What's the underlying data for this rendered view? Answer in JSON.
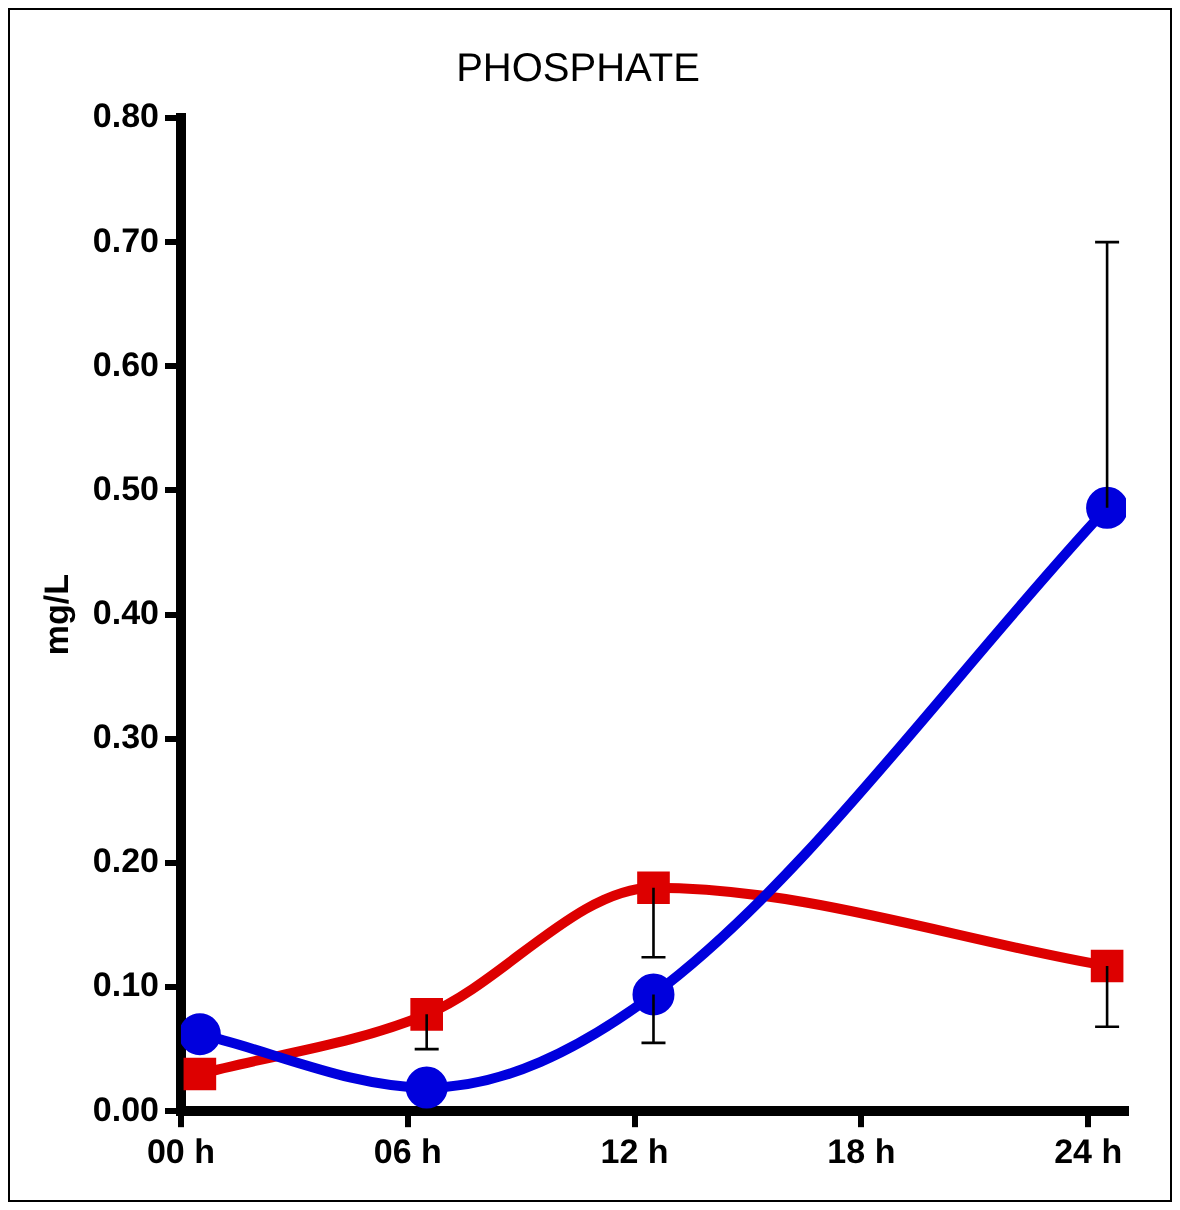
{
  "chart_data": {
    "type": "line",
    "title": "PHOSPHATE",
    "ylabel": "mg/L",
    "x": [
      0.5,
      6.5,
      12.5,
      24.5
    ],
    "xlim": [
      0,
      25
    ],
    "xticks": [
      {
        "value": 0,
        "label": "00 h"
      },
      {
        "value": 6,
        "label": "06 h"
      },
      {
        "value": 12,
        "label": "12 h"
      },
      {
        "value": 18,
        "label": "18 h"
      },
      {
        "value": 24,
        "label": "24 h"
      }
    ],
    "ylim": [
      0,
      0.8
    ],
    "yticks": [
      {
        "value": 0,
        "label": "0.00"
      },
      {
        "value": 0.1,
        "label": "0.10"
      },
      {
        "value": 0.2,
        "label": "0.20"
      },
      {
        "value": 0.3,
        "label": "0.30"
      },
      {
        "value": 0.4,
        "label": "0.40"
      },
      {
        "value": 0.5,
        "label": "0.50"
      },
      {
        "value": 0.6,
        "label": "0.60"
      },
      {
        "value": 0.7,
        "label": "0.70"
      },
      {
        "value": 0.8,
        "label": "0.80"
      }
    ],
    "grid": false,
    "legend": false,
    "line_style": "solid",
    "series": [
      {
        "color": "#0000dd",
        "marker": "circle",
        "values": [
          0.062,
          0.019,
          0.094,
          0.486
        ],
        "errors": [
          null,
          null,
          [
            0.055,
            0.094
          ],
          [
            0.486,
            0.7
          ]
        ]
      },
      {
        "color": "#dd0000",
        "marker": "square",
        "values": [
          0.03,
          0.078,
          0.18,
          0.117
        ],
        "errors": [
          null,
          [
            0.05,
            0.078
          ],
          [
            0.124,
            0.18
          ],
          [
            0.068,
            0.117
          ]
        ]
      }
    ]
  }
}
